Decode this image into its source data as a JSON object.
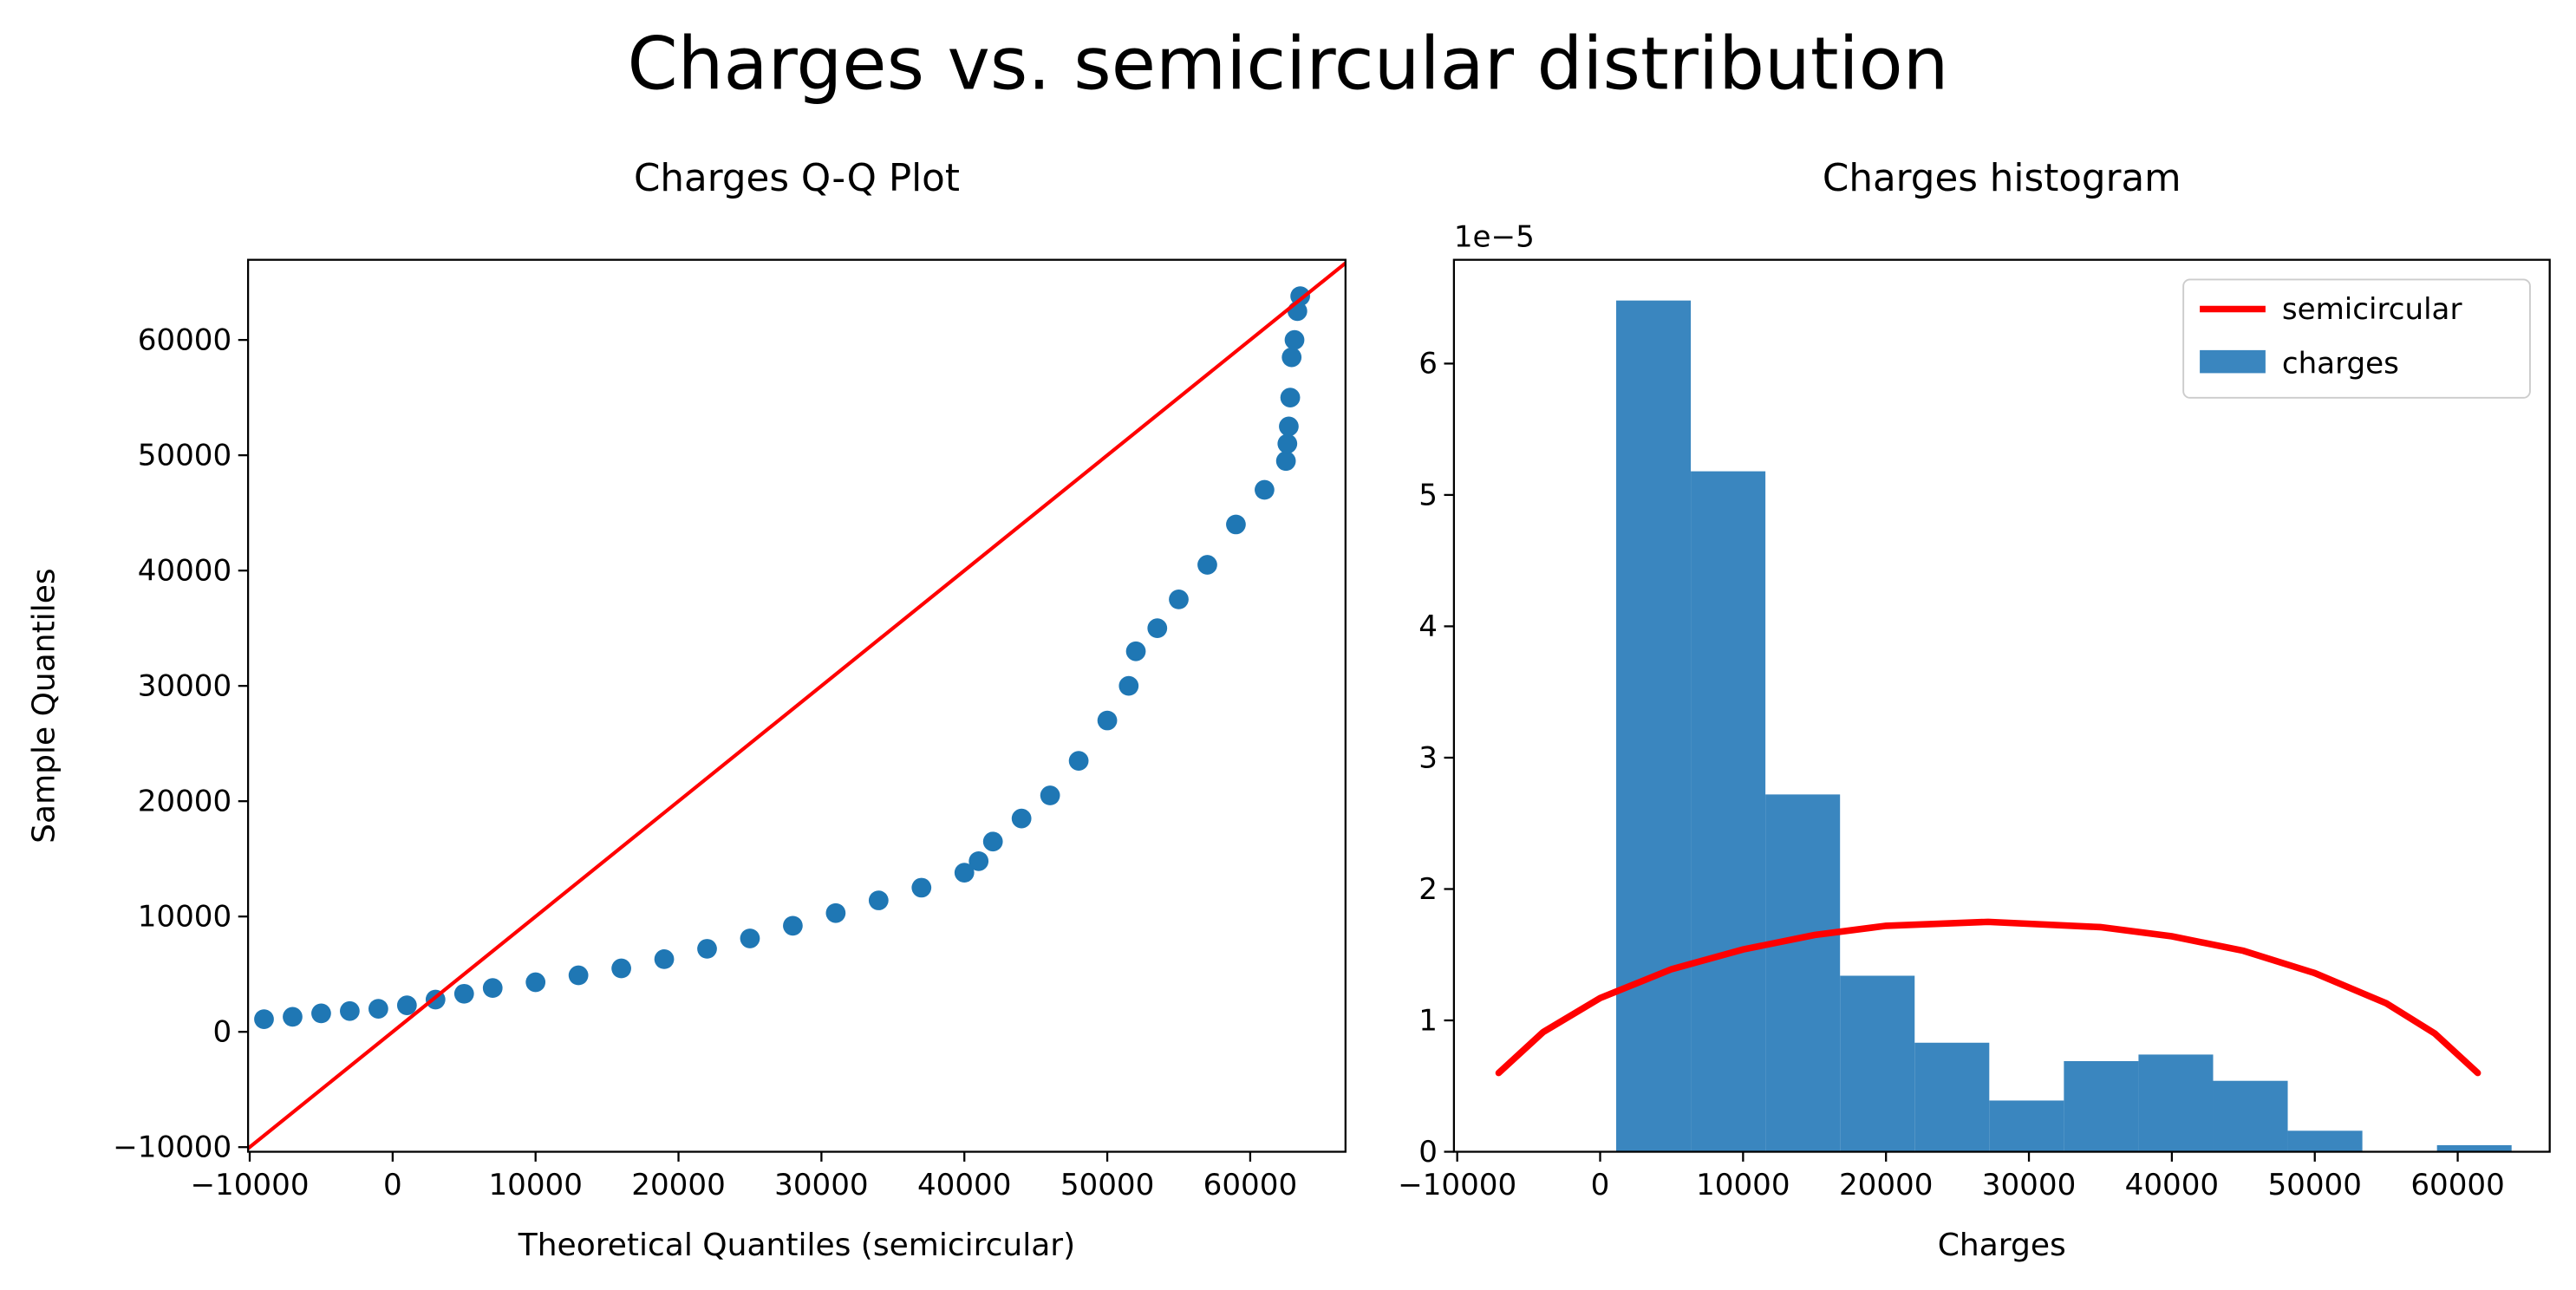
{
  "title": "Charges vs. semicircular distribution",
  "chart_data": [
    {
      "type": "scatter",
      "title": "Charges Q-Q Plot",
      "xlabel": "Theoretical Quantiles (semicircular)",
      "ylabel": "Sample Quantiles",
      "xlim": [
        -10115,
        66667
      ],
      "ylim": [
        -10400,
        66950
      ],
      "xticks": [
        {
          "value": -10000,
          "label": "−10000"
        },
        0,
        10000,
        20000,
        30000,
        40000,
        50000,
        60000
      ],
      "yticks": [
        {
          "value": -10000,
          "label": "−10000"
        },
        0,
        10000,
        20000,
        30000,
        40000,
        50000,
        60000
      ],
      "series": [
        {
          "color": "#1f77b4",
          "x": [
            -9000,
            -7000,
            -5000,
            -3000,
            -1000,
            1000,
            3000,
            5000,
            7000,
            10000,
            13000,
            16000,
            19000,
            22000,
            25000,
            28000,
            31000,
            34000,
            37000,
            40000,
            41000,
            42000,
            44000,
            46000,
            48000,
            50000,
            51500,
            52000,
            53500,
            55000,
            57000,
            59000,
            61000,
            62500,
            62600,
            62700,
            62800,
            62900,
            63100,
            63300,
            63500
          ],
          "values": [
            1100,
            1300,
            1600,
            1800,
            2000,
            2300,
            2800,
            3300,
            3800,
            4300,
            4900,
            5500,
            6300,
            7200,
            8100,
            9200,
            10300,
            11400,
            12500,
            13800,
            14800,
            16500,
            18500,
            20500,
            23500,
            27000,
            30000,
            33000,
            35000,
            37500,
            40500,
            44000,
            47000,
            49500,
            51000,
            52500,
            55000,
            58500,
            60000,
            62500,
            63800
          ]
        }
      ],
      "reference_line": {
        "color": "red",
        "x": [
          -10400,
          67000
        ],
        "values": [
          -10400,
          67000
        ]
      }
    },
    {
      "type": "histogram",
      "title": "Charges histogram",
      "xlabel": "Charges",
      "y_offset_label": "1e−5",
      "xlim": [
        -10230,
        66437
      ],
      "ylim": [
        0,
        6.79
      ],
      "xticks": [
        {
          "value": -10000,
          "label": "−10000"
        },
        0,
        10000,
        20000,
        30000,
        40000,
        50000,
        60000
      ],
      "yticks": [
        0,
        1,
        2,
        3,
        4,
        5,
        6
      ],
      "legend": "upper right",
      "histogram": {
        "name": "charges",
        "color": "#3a86bf",
        "bins": [
          1122,
          6343,
          11563,
          16784,
          22005,
          27226,
          32446,
          37667,
          42888,
          48108,
          53329,
          58550,
          63770
        ],
        "values": [
          6.48,
          5.18,
          2.72,
          1.34,
          0.83,
          0.39,
          0.69,
          0.74,
          0.54,
          0.16,
          0.0,
          0.05
        ]
      },
      "line": {
        "name": "semicircular",
        "color": "red",
        "x": [
          -7100,
          -4000,
          0,
          5000,
          10000,
          15000,
          20000,
          27150,
          35000,
          40000,
          45000,
          50000,
          55000,
          58400,
          61400
        ],
        "values": [
          0.6,
          0.91,
          1.17,
          1.39,
          1.54,
          1.65,
          1.72,
          1.75,
          1.71,
          1.64,
          1.53,
          1.36,
          1.13,
          0.9,
          0.6
        ]
      }
    }
  ]
}
